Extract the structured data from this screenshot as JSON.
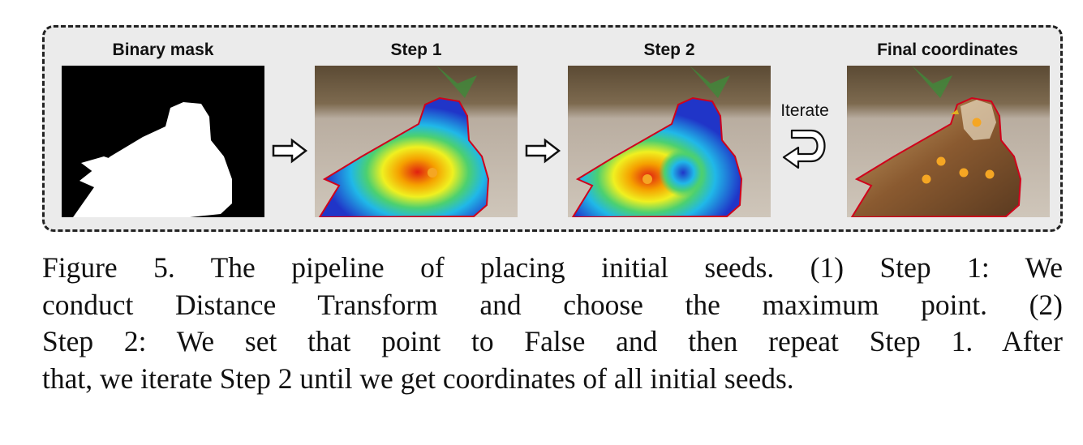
{
  "stages": [
    {
      "title": "Binary mask"
    },
    {
      "title": "Step 1"
    },
    {
      "title": "Step 2"
    },
    {
      "title": "Final coordinates"
    }
  ],
  "iterate_label": "Iterate",
  "caption": {
    "lines": [
      "Figure 5. The pipeline of placing initial seeds.  (1) Step 1:  We",
      "conduct Distance Transform and choose the maximum point. (2)",
      "Step 2:  We set that point to False and then repeat Step 1.  After",
      "that, we iterate Step 2 until we get coordinates of all initial seeds."
    ]
  },
  "colors": {
    "seed": "#f5a623",
    "contour": "#d0021b",
    "heat_low": "#2035c8",
    "heat_high": "#e02010"
  }
}
